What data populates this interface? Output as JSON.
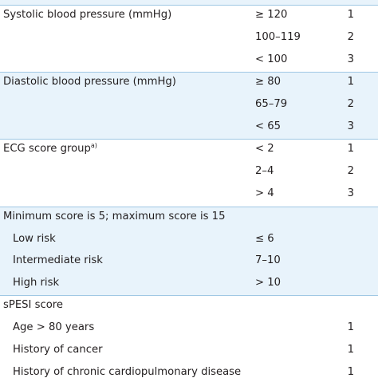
{
  "sections": [
    {
      "name": "systolic",
      "shaded": false,
      "rows": [
        {
          "label": "Systolic blood pressure (mmHg)",
          "criterion": "≥ 120",
          "points": "1"
        },
        {
          "label": "",
          "criterion": "100–119",
          "points": "2"
        },
        {
          "label": "",
          "criterion": "< 100",
          "points": "3"
        }
      ]
    },
    {
      "name": "diastolic",
      "shaded": true,
      "rows": [
        {
          "label": "Diastolic blood pressure (mmHg)",
          "criterion": "≥ 80",
          "points": "1"
        },
        {
          "label": "",
          "criterion": "65–79",
          "points": "2"
        },
        {
          "label": "",
          "criterion": "< 65",
          "points": "3"
        }
      ]
    },
    {
      "name": "ecg",
      "shaded": false,
      "rows": [
        {
          "label": "ECG score group",
          "label_sup": "a)",
          "criterion": "< 2",
          "points": "1"
        },
        {
          "label": "",
          "criterion": "2–4",
          "points": "2"
        },
        {
          "label": "",
          "criterion": "> 4",
          "points": "3"
        }
      ]
    },
    {
      "name": "score-range",
      "shaded": true,
      "rows": [
        {
          "label": "Minimum score is 5; maximum score is 15",
          "criterion": "",
          "points": ""
        },
        {
          "label": "Low risk",
          "indent": true,
          "criterion": "≤ 6",
          "points": ""
        },
        {
          "label": "Intermediate risk",
          "indent": true,
          "criterion": "7–10",
          "points": ""
        },
        {
          "label": "High risk",
          "indent": true,
          "criterion": "> 10",
          "points": ""
        }
      ]
    },
    {
      "name": "spesi",
      "shaded": false,
      "rows": [
        {
          "label": "sPESI score",
          "criterion": "",
          "points": ""
        },
        {
          "label": "Age > 80 years",
          "indent": true,
          "criterion": "",
          "points": "1"
        },
        {
          "label": "History of cancer",
          "indent": true,
          "criterion": "",
          "points": "1"
        },
        {
          "label": "History of chronic cardiopulmonary disease",
          "indent": true,
          "criterion": "",
          "points": "1"
        }
      ]
    }
  ]
}
